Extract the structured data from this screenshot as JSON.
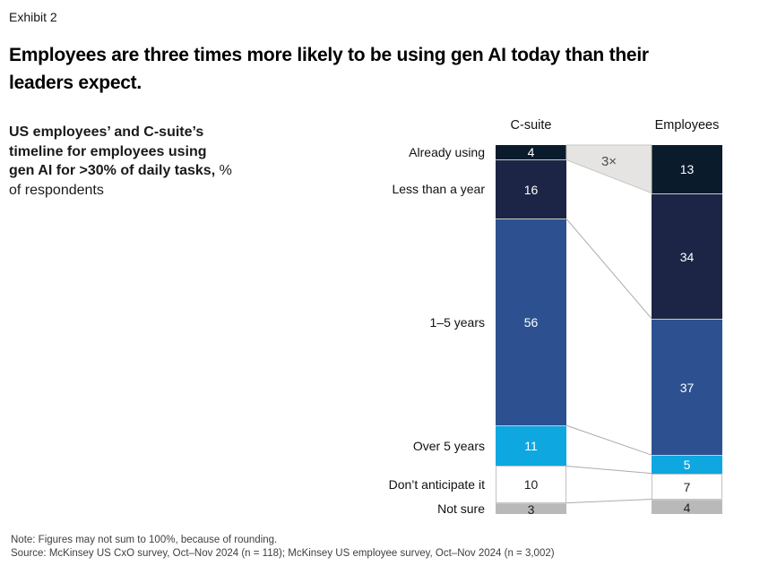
{
  "page": {
    "exhibit_label": "Exhibit 2",
    "title_lines": [
      "Employees are three times more likely to be using gen AI today than their",
      "leaders expect."
    ],
    "note": "Note: Figures may not sum to 100%, because of rounding.",
    "source": "Source: McKinsey US CxO survey, Oct–Nov 2024 (n = 118); McKinsey US employee survey, Oct–Nov 2024 (n = 3,002)"
  },
  "description": {
    "bold_line1": "US employees’ and C-suite’s",
    "bold_line2": "timeline for employees using",
    "bold_line3": "gen AI for >30% of daily tasks,",
    "regular_line3": "%",
    "regular_line4": "of respondents"
  },
  "chart_data": {
    "type": "bar",
    "variant": "paired 100% stacked columns with boundary connectors",
    "title": "US employees’ and C-suite’s timeline for employees using gen AI for >30% of daily tasks, % of respondents",
    "unit": "% of respondents",
    "value_range": [
      0,
      100
    ],
    "categories": [
      "Already using",
      "Less than a year",
      "1–5 years",
      "Over 5 years",
      "Don’t anticipate it",
      "Not sure"
    ],
    "series": [
      {
        "name": "C-suite",
        "values": [
          4,
          16,
          56,
          11,
          10,
          3
        ]
      },
      {
        "name": "Employees",
        "values": [
          13,
          34,
          37,
          5,
          7,
          4
        ]
      }
    ],
    "annotation": "3×",
    "colors": {
      "segment_fills": [
        "#0a1b2c",
        "#1c2545",
        "#2d5190",
        "#0ea7e0",
        "#ffffff",
        "#b9b9b9"
      ],
      "value_text": [
        "#ffffff",
        "#ffffff",
        "#ffffff",
        "#ffffff",
        "#1f1f1f",
        "#1f1f1f"
      ],
      "band_fill": "#e5e4e2",
      "band_stroke": "#c6c6c4",
      "connector_line": "#ababab",
      "annotation_text": "#4d4d4d"
    }
  }
}
